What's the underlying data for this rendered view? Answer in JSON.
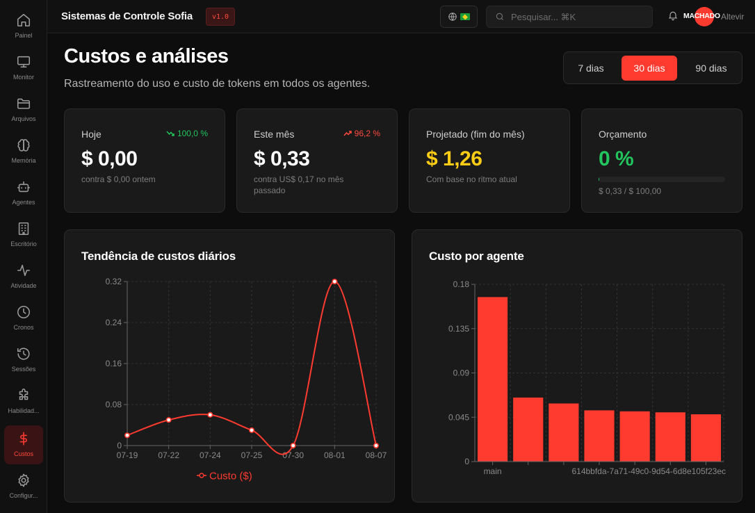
{
  "app": {
    "title": "Sistemas de Controle Sofia",
    "version": "v1.0"
  },
  "sidebar": {
    "items": [
      {
        "label": "Painel",
        "icon": "home-icon"
      },
      {
        "label": "Monitor",
        "icon": "monitor-icon"
      },
      {
        "label": "Arquivos",
        "icon": "folder-icon"
      },
      {
        "label": "Memória",
        "icon": "brain-icon"
      },
      {
        "label": "Agentes",
        "icon": "bot-icon"
      },
      {
        "label": "Escritório",
        "icon": "building-icon"
      },
      {
        "label": "Atividade",
        "icon": "activity-icon"
      },
      {
        "label": "Cronos",
        "icon": "clock-icon"
      },
      {
        "label": "Sessões",
        "icon": "history-icon"
      },
      {
        "label": "Habilidad...",
        "icon": "puzzle-icon"
      },
      {
        "label": "Custos",
        "icon": "dollar-icon",
        "active": true
      },
      {
        "label": "Configur...",
        "icon": "gear-icon"
      }
    ]
  },
  "header": {
    "search_placeholder": "Pesquisar... ⌘K",
    "avatar_text": "MACHADO",
    "user_name": "Altevir",
    "language": "pt-BR"
  },
  "page": {
    "title": "Custos e análises",
    "subtitle": "Rastreamento do uso e custo de tokens em todos os agentes.",
    "ranges": [
      {
        "label": "7 dias"
      },
      {
        "label": "30 dias",
        "active": true
      },
      {
        "label": "90 dias"
      }
    ]
  },
  "stats": {
    "today": {
      "label": "Hoje",
      "value": "$ 0,00",
      "note": "contra $ 0,00 ontem",
      "trend": "100,0 %",
      "trend_color": "#22c55e"
    },
    "month": {
      "label": "Este mês",
      "value": "$ 0,33",
      "note": "contra US$ 0,17 no mês passado",
      "trend": "96,2 %",
      "trend_color": "#ff4a3d"
    },
    "projected": {
      "label": "Projetado (fim do mês)",
      "value": "$ 1,26",
      "note": "Com base no ritmo atual",
      "value_color": "#facc15"
    },
    "budget": {
      "label": "Orçamento",
      "value": "0 %",
      "note": "$ 0,33 / $ 100,00",
      "value_color": "#22c55e",
      "progress": 0.0033
    }
  },
  "charts": {
    "daily_title": "Tendência de custos diários",
    "agent_title": "Custo por agente"
  },
  "chart_data": [
    {
      "type": "line",
      "title": "Tendência de custos diários",
      "x": [
        "07-19",
        "07-22",
        "07-24",
        "07-25",
        "07-30",
        "08-01",
        "08-07"
      ],
      "series": [
        {
          "name": "Custo ($)",
          "values": [
            0.02,
            0.05,
            0.06,
            0.03,
            0.0,
            0.32,
            0.0
          ],
          "color": "#ff3b30"
        }
      ],
      "yticks": [
        "0",
        "0.08",
        "0.16",
        "0.24",
        "0.32"
      ],
      "ylim": [
        0,
        0.32
      ],
      "grid": true,
      "legend": "bottom"
    },
    {
      "type": "bar",
      "title": "Custo por agente",
      "categories": [
        "main",
        "",
        "",
        "",
        "",
        "",
        "614bbfda-7a71-49c0-9d54-6d8e105f23ec"
      ],
      "values": [
        0.167,
        0.065,
        0.059,
        0.052,
        0.051,
        0.05,
        0.048
      ],
      "yticks": [
        "0",
        "0.045",
        "0.09",
        "0.135",
        "0.18"
      ],
      "ylim": [
        0,
        0.18
      ],
      "color": "#ff3b30",
      "grid": true
    }
  ]
}
